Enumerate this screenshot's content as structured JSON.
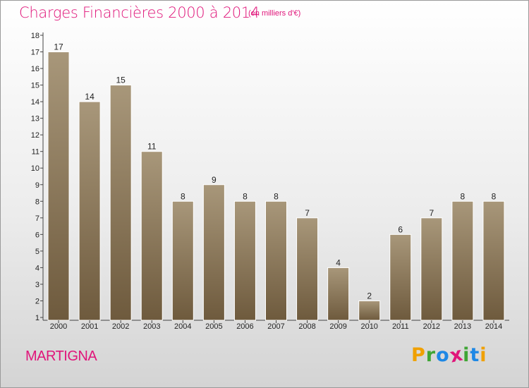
{
  "chart_data": {
    "type": "bar",
    "title": "Charges Financières 2000 à 2014",
    "subtitle": "(en milliers d'€)",
    "categories": [
      "2000",
      "2001",
      "2002",
      "2003",
      "2004",
      "2005",
      "2006",
      "2007",
      "2008",
      "2009",
      "2010",
      "2011",
      "2012",
      "2013",
      "2014"
    ],
    "values": [
      17,
      14,
      15,
      11,
      8,
      9,
      8,
      8,
      7,
      4,
      2,
      6,
      7,
      8,
      8
    ],
    "ylim": [
      1,
      18
    ],
    "yticks": [
      1,
      2,
      3,
      4,
      5,
      6,
      7,
      8,
      9,
      10,
      11,
      12,
      13,
      14,
      15,
      16,
      17,
      18
    ],
    "xlabel": "",
    "ylabel": "",
    "grid": false,
    "bar_color_top": "#a8977a",
    "bar_color_bottom": "#6e5a3d"
  },
  "footer": {
    "commune": "MARTIGNA",
    "logo": {
      "letters": [
        "P",
        "r",
        "o",
        "x",
        "i",
        "t",
        "i"
      ],
      "colors": [
        "#f0a000",
        "#3fa535",
        "#1e88e5",
        "#e0157a",
        "#3fa535",
        "#1e88e5",
        "#f0a000"
      ]
    }
  },
  "colors": {
    "accent": "#e0157a"
  }
}
